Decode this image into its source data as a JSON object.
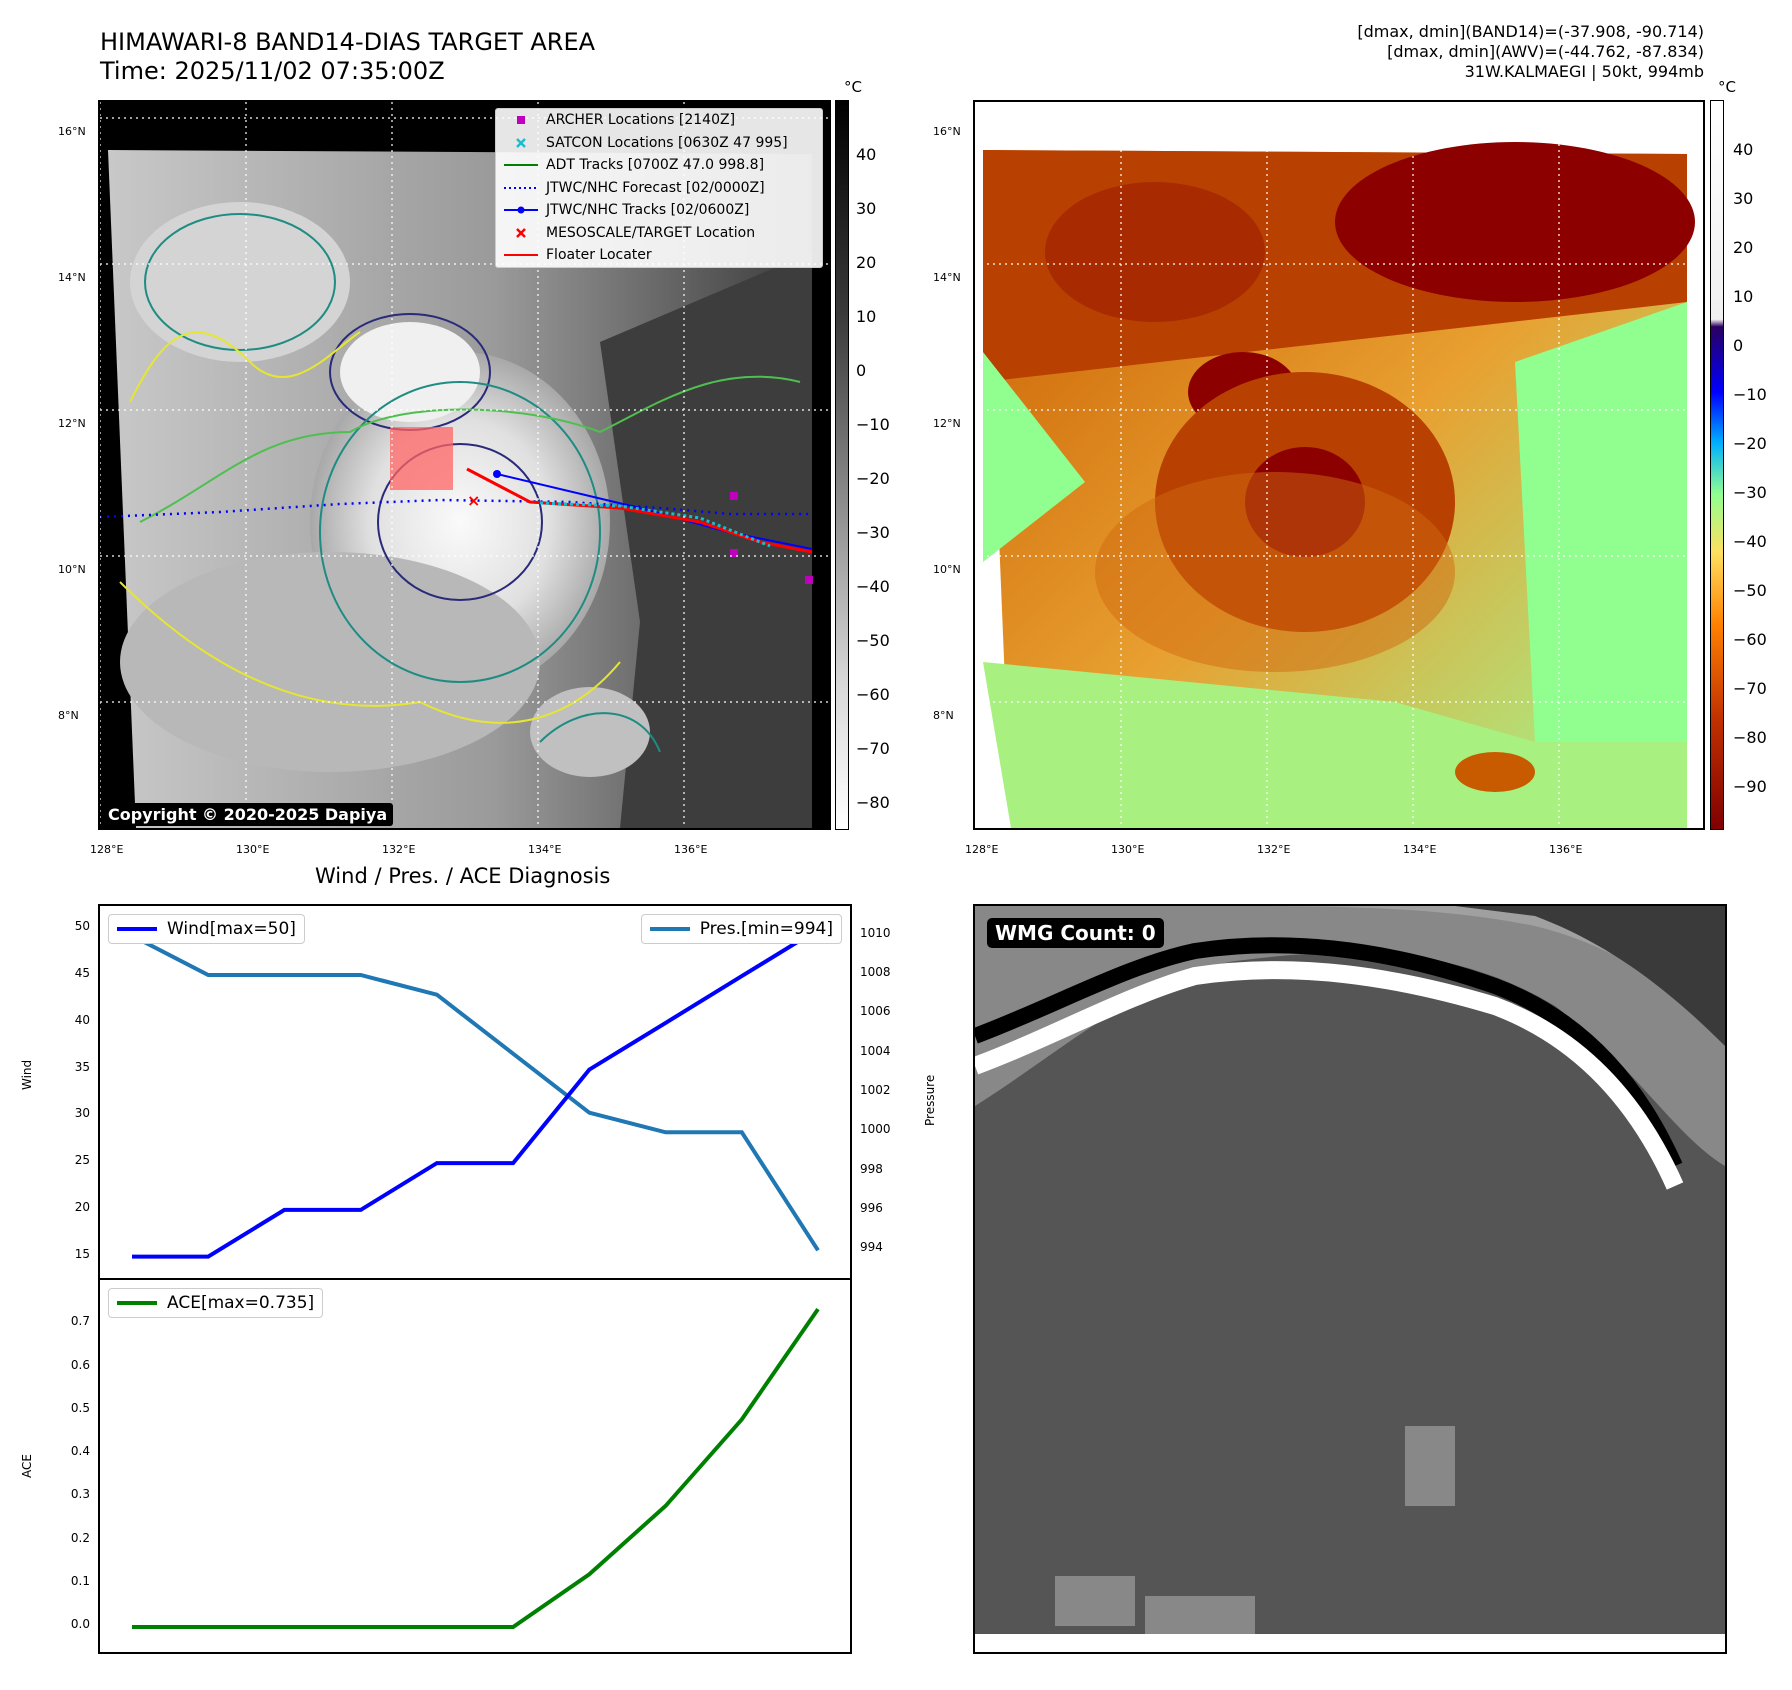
{
  "header": {
    "title_line1": "HIMAWARI-8 BAND14-DIAS TARGET AREA",
    "title_line2": "Time: 2025/11/02 07:35:00Z",
    "info_line1": "[dmax, dmin](BAND14)=(-37.908, -90.714)",
    "info_line2": "[dmax, dmin](AWV)=(-44.762, -87.834)",
    "info_line3": "31W.KALMAEGI | 50kt, 994mb"
  },
  "map_axes": {
    "lat_ticks": [
      "16°N",
      "14°N",
      "12°N",
      "10°N",
      "8°N"
    ],
    "lon_ticks": [
      "128°E",
      "130°E",
      "132°E",
      "134°E",
      "136°E"
    ]
  },
  "ir_panel": {
    "colorbar_unit": "°C",
    "colorbar_ticks": [
      "40",
      "30",
      "20",
      "10",
      "0",
      "−10",
      "−20",
      "−30",
      "−40",
      "−50",
      "−60",
      "−70",
      "−80"
    ],
    "legend": [
      {
        "label": "ARCHER Locations [2140Z]",
        "symbol": "square",
        "color": "#bf00bf"
      },
      {
        "label": "SATCON Locations [0630Z 47 995]",
        "symbol": "x",
        "color": "#17becf"
      },
      {
        "label": "ADT Tracks [0700Z 47.0 998.8]",
        "symbol": "line",
        "color": "#008000"
      },
      {
        "label": "JTWC/NHC Forecast [02/0000Z]",
        "symbol": "dotted",
        "color": "#0000ff"
      },
      {
        "label": "JTWC/NHC Tracks [02/0600Z]",
        "symbol": "line-dot",
        "color": "#0000ff"
      },
      {
        "label": "MESOSCALE/TARGET Location",
        "symbol": "x",
        "color": "#ff0000"
      },
      {
        "label": "Floater Locater",
        "symbol": "line",
        "color": "#ff0000"
      }
    ],
    "copyright": "Copyright © 2020-2025 Dapiya"
  },
  "awv_panel": {
    "colorbar_unit": "°C",
    "colorbar_ticks": [
      "40",
      "30",
      "20",
      "10",
      "0",
      "−10",
      "−20",
      "−30",
      "−40",
      "−50",
      "−60",
      "−70",
      "−80",
      "−90"
    ]
  },
  "diagnosis": {
    "title": "Wind / Pres. / ACE Diagnosis",
    "wind_ylabel": "Wind",
    "pres_ylabel": "Pressure",
    "ace_ylabel": "ACE",
    "wind_legend": "Wind[max=50]",
    "pres_legend": "Pres.[min=994]",
    "ace_legend": "ACE[max=0.735]",
    "colors": {
      "wind": "#0000ff",
      "pres": "#1f77b4",
      "ace": "#008000"
    }
  },
  "wmg_panel": {
    "label": "WMG Count: 0"
  },
  "chart_data": [
    {
      "type": "line",
      "title": "Wind / Pres. / ACE Diagnosis",
      "x": [
        0,
        1,
        2,
        3,
        4,
        5,
        6,
        7,
        8,
        9
      ],
      "series": [
        {
          "name": "Wind[max=50]",
          "values": [
            15,
            15,
            20,
            20,
            25,
            25,
            35,
            40,
            45,
            50
          ],
          "ylim": [
            14,
            51
          ],
          "yticks": [
            "15",
            "20",
            "25",
            "30",
            "35",
            "40",
            "45",
            "50"
          ],
          "ylabel": "Wind"
        },
        {
          "name": "Pres.[min=994]",
          "values": [
            1010,
            1008,
            1008,
            1008,
            1007,
            1004,
            1001,
            1000,
            1000,
            994
          ],
          "ylim": [
            993.2,
            1010.8
          ],
          "yticks": [
            "994",
            "996",
            "998",
            "1000",
            "1002",
            "1004",
            "1006",
            "1008",
            "1010"
          ],
          "ylabel": "Pressure"
        }
      ]
    },
    {
      "type": "line",
      "x": [
        0,
        1,
        2,
        3,
        4,
        5,
        6,
        7,
        8,
        9
      ],
      "series": [
        {
          "name": "ACE[max=0.735]",
          "values": [
            0,
            0,
            0,
            0,
            0,
            0,
            0.122,
            0.28,
            0.48,
            0.735
          ],
          "ylim": [
            -0.03,
            0.77
          ],
          "yticks": [
            "0.0",
            "0.1",
            "0.2",
            "0.3",
            "0.4",
            "0.5",
            "0.6",
            "0.7"
          ],
          "ylabel": "ACE"
        }
      ]
    }
  ]
}
